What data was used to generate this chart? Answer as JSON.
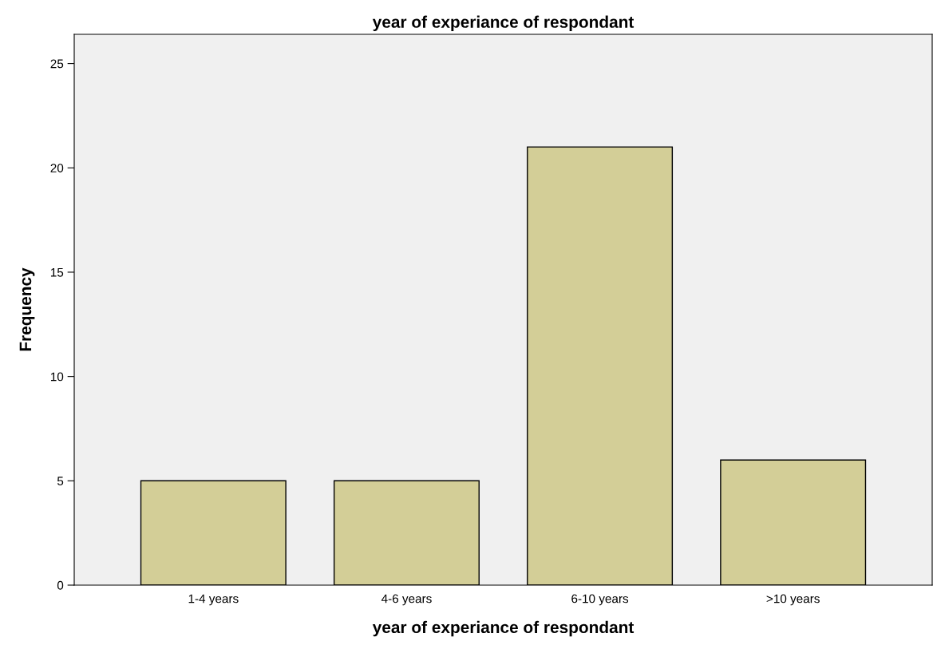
{
  "chart_data": {
    "type": "bar",
    "title": "year of experiance of respondant",
    "xlabel": "year of experiance of respondant",
    "ylabel": "Frequency",
    "categories": [
      "1-4 years",
      "4-6 years",
      "6-10 years",
      ">10 years"
    ],
    "values": [
      5,
      5,
      21,
      6
    ],
    "color": "#d3ce97",
    "ylim": [
      0,
      26.4
    ],
    "yticks": [
      0,
      5,
      10,
      15,
      20,
      25
    ],
    "grid": false,
    "legend": false
  }
}
